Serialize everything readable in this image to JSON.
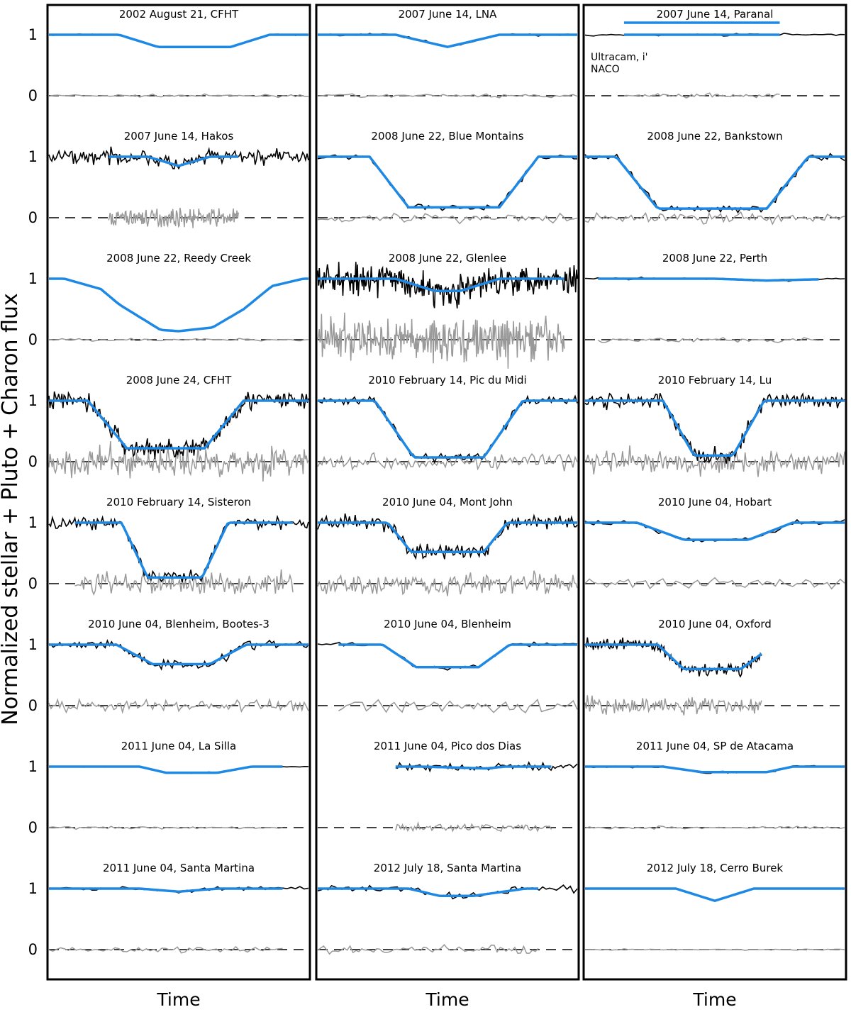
{
  "figure": {
    "ylabel": "Normalized stellar + Pluto + Charon flux",
    "xlabel": "Time",
    "yticks": [
      "1",
      "0"
    ]
  },
  "chart_data": {
    "type": "line",
    "columns": 3,
    "rows": 8,
    "shared_ylabel": "Normalized stellar + Pluto + Charon flux",
    "shared_xlabel": "Time",
    "ytick_values": [
      0,
      1
    ],
    "panel_ylim": [
      -0.5,
      1.5
    ],
    "legend": "none",
    "series_styles": {
      "observed": {
        "color": "#000000"
      },
      "model": {
        "color": "#1e88e5"
      },
      "residuals": {
        "color": "#999999"
      },
      "zero_line": {
        "color": "#000000",
        "style": "dashed"
      }
    },
    "panels": [
      {
        "col": 0,
        "row": 0,
        "title": "2002 August 21, CFHT",
        "x": [
          0,
          0.27,
          0.42,
          0.7,
          0.85,
          1
        ],
        "model": [
          1,
          1,
          0.8,
          0.8,
          1,
          1
        ],
        "fit_range": [
          0,
          1
        ],
        "noise": 0.005,
        "resid_noise": 0.01,
        "fit_color": "#1e88e5",
        "thin": false
      },
      {
        "col": 0,
        "row": 1,
        "title": "2007 June 14, Hakos",
        "x": [
          0,
          0.38,
          0.5,
          0.62,
          1
        ],
        "model": [
          1,
          1,
          0.85,
          1,
          1
        ],
        "fit_range": [
          0.23,
          0.73
        ],
        "noise": 0.06,
        "resid_noise": 0.07,
        "fit_color": "#1e88e5",
        "thin": true
      },
      {
        "col": 0,
        "row": 2,
        "title": "2008 June 22, Reedy Creek",
        "x": [
          0,
          0.06,
          0.2,
          0.27,
          0.43,
          0.5,
          0.63,
          0.75,
          0.86,
          0.98,
          1
        ],
        "model": [
          1,
          1,
          0.83,
          0.58,
          0.16,
          0.14,
          0.2,
          0.5,
          0.88,
          1,
          1
        ],
        "fit_range": [
          0,
          1
        ],
        "noise": 0.005,
        "resid_noise": 0.01,
        "fit_color": "#1e88e5",
        "thin": false
      },
      {
        "col": 0,
        "row": 3,
        "title": "2008 June 24, CFHT",
        "x": [
          0,
          0.15,
          0.3,
          0.6,
          0.75,
          1
        ],
        "model": [
          1,
          1,
          0.22,
          0.22,
          1,
          1
        ],
        "fit_range": [
          0,
          1
        ],
        "noise": 0.08,
        "resid_noise": 0.12,
        "fit_color": "#1e88e5",
        "thin": false
      },
      {
        "col": 0,
        "row": 4,
        "title": "2010 February 14, Sisteron",
        "x": [
          0,
          0.28,
          0.38,
          0.59,
          0.69,
          1
        ],
        "model": [
          1,
          1,
          0.1,
          0.1,
          1,
          1
        ],
        "fit_range": [
          0.1,
          0.94
        ],
        "noise": 0.05,
        "resid_noise": 0.09,
        "fit_color": "#1e88e5",
        "thin": false
      },
      {
        "col": 0,
        "row": 5,
        "title": "2010 June 04, Blenheim, Bootes-3",
        "x": [
          0,
          0.26,
          0.4,
          0.62,
          0.76,
          1
        ],
        "model": [
          1,
          1,
          0.68,
          0.68,
          1,
          1
        ],
        "fit_range": [
          0,
          1
        ],
        "noise": 0.04,
        "resid_noise": 0.05,
        "fit_color": "#1e88e5",
        "thin": false
      },
      {
        "col": 0,
        "row": 6,
        "title": "2011 June 04, La Silla",
        "x": [
          0,
          0.35,
          0.45,
          0.65,
          0.78,
          1
        ],
        "model": [
          1,
          1,
          0.9,
          0.9,
          1,
          1
        ],
        "fit_range": [
          0,
          0.9
        ],
        "noise": 0.005,
        "resid_noise": 0.01,
        "fit_color": "#1e88e5",
        "thin": false
      },
      {
        "col": 0,
        "row": 7,
        "title": "2011 June 04, Santa Martina",
        "x": [
          0,
          0.35,
          0.5,
          0.65,
          1
        ],
        "model": [
          1,
          1,
          0.95,
          1,
          1
        ],
        "fit_range": [
          0,
          0.9
        ],
        "noise": 0.015,
        "resid_noise": 0.025,
        "fit_color": "#1e88e5",
        "thin": false
      },
      {
        "col": 1,
        "row": 0,
        "title": "2007 June 14, LNA",
        "x": [
          0,
          0.3,
          0.5,
          0.7,
          1
        ],
        "model": [
          1,
          1,
          0.8,
          1,
          1
        ],
        "fit_range": [
          0,
          1
        ],
        "noise": 0.01,
        "resid_noise": 0.015,
        "fit_color": "#1e88e5",
        "thin": false
      },
      {
        "col": 1,
        "row": 1,
        "title": "2008 June 22, Blue Montains",
        "x": [
          0,
          0.2,
          0.35,
          0.7,
          0.85,
          1
        ],
        "model": [
          1,
          1,
          0.17,
          0.17,
          1,
          1
        ],
        "fit_range": [
          0,
          1
        ],
        "noise": 0.025,
        "resid_noise": 0.04,
        "fit_color": "#1e88e5",
        "thin": false
      },
      {
        "col": 1,
        "row": 2,
        "title": "2008 June 22, Glenlee",
        "x": [
          0,
          0.3,
          0.45,
          0.55,
          0.7,
          1
        ],
        "model": [
          1,
          1,
          0.8,
          0.8,
          1,
          1
        ],
        "fit_range": [
          0,
          0.95
        ],
        "noise": 0.12,
        "resid_noise": 0.18,
        "fit_color": "#1e88e5",
        "thin": false
      },
      {
        "col": 1,
        "row": 3,
        "title": "2010 February 14, Pic du Midi",
        "x": [
          0,
          0.22,
          0.37,
          0.64,
          0.79,
          1
        ],
        "model": [
          1,
          1,
          0.07,
          0.07,
          1,
          1
        ],
        "fit_range": [
          0,
          1
        ],
        "noise": 0.04,
        "resid_noise": 0.06,
        "fit_color": "#1e88e5",
        "thin": false
      },
      {
        "col": 1,
        "row": 4,
        "title": "2010 June 04, Mont John",
        "x": [
          0,
          0.27,
          0.36,
          0.64,
          0.73,
          1
        ],
        "model": [
          1,
          1,
          0.52,
          0.52,
          1,
          1
        ],
        "fit_range": [
          0,
          1
        ],
        "noise": 0.06,
        "resid_noise": 0.09,
        "fit_color": "#1e88e5",
        "thin": false
      },
      {
        "col": 1,
        "row": 5,
        "title": "2010 June 04, Blenheim",
        "x": [
          0,
          0.25,
          0.38,
          0.62,
          0.74,
          1
        ],
        "model": [
          1,
          1,
          0.63,
          0.63,
          1,
          1
        ],
        "fit_range": [
          0.08,
          1
        ],
        "noise": 0.02,
        "resid_noise": 0.05,
        "fit_color": "#1e88e5",
        "thin": false
      },
      {
        "col": 1,
        "row": 6,
        "title": "2011 June 04, Pico dos Dias",
        "x": [
          0,
          0.4,
          0.65,
          0.72,
          1
        ],
        "model": [
          1,
          1,
          0.97,
          1,
          1
        ],
        "fit_range": [
          0.3,
          0.9
        ],
        "noise": 0.03,
        "resid_noise": 0.03,
        "fit_color": "#1e88e5",
        "thin": false
      },
      {
        "col": 1,
        "row": 7,
        "title": "2012 July 18, Santa Martina",
        "x": [
          0,
          0.35,
          0.47,
          0.6,
          0.8,
          1
        ],
        "model": [
          1,
          1,
          0.88,
          0.88,
          1,
          1
        ],
        "fit_range": [
          0,
          0.85
        ],
        "noise": 0.025,
        "resid_noise": 0.03,
        "fit_color": "#1e88e5",
        "thin": false
      },
      {
        "col": 2,
        "row": 0,
        "title": "2007 June 14, Paranal",
        "x": [
          0,
          1
        ],
        "model": [
          1,
          1
        ],
        "fit_range": [
          0.15,
          0.75
        ],
        "noise": 0.01,
        "resid_noise": 0.02,
        "fit_color": "#1e88e5",
        "thin": false
      },
      {
        "col": 2,
        "row": 1,
        "title": "2008 June 22, Bankstown",
        "x": [
          0,
          0.12,
          0.28,
          0.7,
          0.86,
          1
        ],
        "model": [
          1,
          1,
          0.15,
          0.15,
          1,
          1
        ],
        "fit_range": [
          0,
          1
        ],
        "noise": 0.03,
        "resid_noise": 0.04,
        "fit_color": "#1e88e5",
        "thin": false
      },
      {
        "col": 2,
        "row": 2,
        "title": "2008 June 22, Perth",
        "x": [
          0,
          0.5,
          0.7,
          1
        ],
        "model": [
          1,
          1,
          0.97,
          1
        ],
        "fit_range": [
          0.05,
          0.9
        ],
        "noise": 0.01,
        "resid_noise": 0.02,
        "fit_color": "#1e88e5",
        "thin": false
      },
      {
        "col": 2,
        "row": 3,
        "title": "2010 February 14, Lu",
        "x": [
          0,
          0.3,
          0.42,
          0.57,
          0.69,
          1
        ],
        "model": [
          1,
          1,
          0.1,
          0.1,
          1,
          1
        ],
        "fit_range": [
          0,
          1
        ],
        "noise": 0.06,
        "resid_noise": 0.1,
        "fit_color": "#1e88e5",
        "thin": false
      },
      {
        "col": 2,
        "row": 4,
        "title": "2010 June 04, Hobart",
        "x": [
          0,
          0.2,
          0.38,
          0.63,
          0.8,
          1
        ],
        "model": [
          1,
          1,
          0.72,
          0.72,
          1,
          1
        ],
        "fit_range": [
          0,
          1
        ],
        "noise": 0.02,
        "resid_noise": 0.045,
        "fit_color": "#1e88e5",
        "thin": false
      },
      {
        "col": 2,
        "row": 5,
        "title": "2010 June 04, Oxford",
        "x": [
          0,
          0.28,
          0.38,
          0.6,
          0.68
        ],
        "model": [
          1,
          1,
          0.6,
          0.6,
          0.85
        ],
        "fit_range": [
          0,
          0.68
        ],
        "noise": 0.05,
        "resid_noise": 0.07,
        "fit_color": "#1e88e5",
        "thin": false
      },
      {
        "col": 2,
        "row": 6,
        "title": "2011 June 04, SP de Atacama",
        "x": [
          0,
          0.3,
          0.45,
          0.7,
          0.8,
          1
        ],
        "model": [
          1,
          1,
          0.91,
          0.91,
          1,
          1
        ],
        "fit_range": [
          0,
          1
        ],
        "noise": 0.01,
        "resid_noise": 0.01,
        "fit_color": "#1e88e5",
        "thin": false
      },
      {
        "col": 2,
        "row": 7,
        "title": "2012 July 18, Cerro Burek",
        "x": [
          0,
          0.35,
          0.5,
          0.65,
          1
        ],
        "model": [
          1,
          1,
          0.8,
          1,
          1
        ],
        "fit_range": [
          0,
          1
        ],
        "noise": 0.003,
        "resid_noise": 0.005,
        "fit_color": "#1e88e5",
        "thin": false
      }
    ],
    "annotations": [
      {
        "panel": "2007 June 14, Paranal",
        "text": "Ultracam, i'"
      },
      {
        "panel": "2007 June 14, Paranal",
        "text": "NACO"
      }
    ]
  }
}
